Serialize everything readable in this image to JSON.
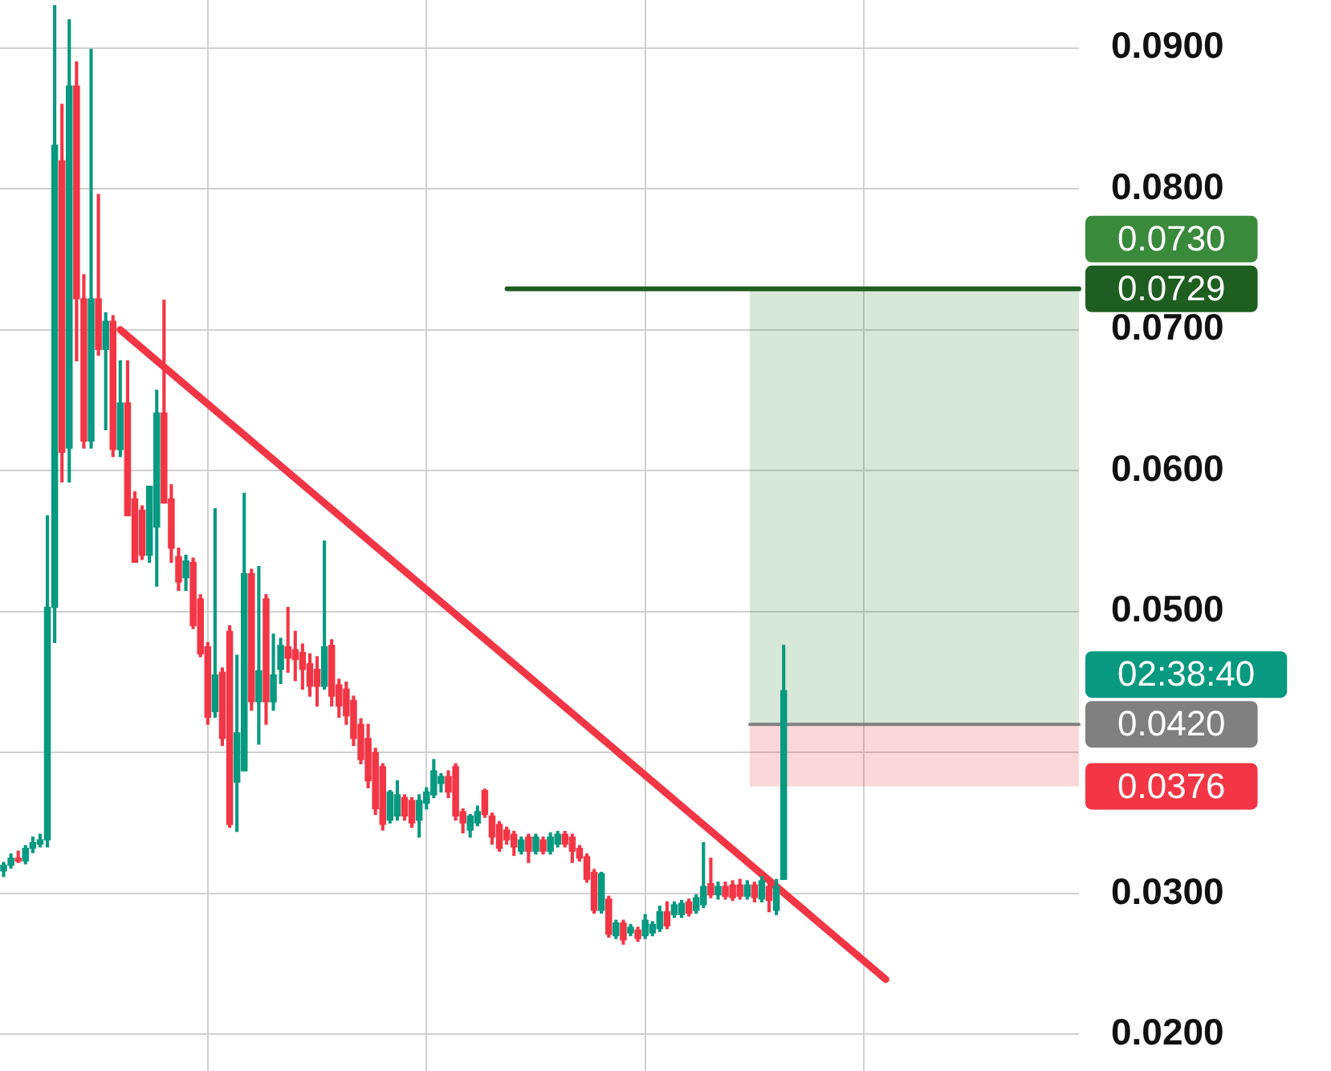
{
  "chart_data": {
    "type": "candlestick",
    "categories": [
      null,
      null,
      null,
      null,
      null,
      null,
      null,
      null,
      null,
      null,
      null,
      null,
      null,
      null,
      null,
      null,
      null,
      null,
      null,
      null,
      null,
      null,
      null,
      null,
      null,
      null,
      null,
      null,
      null,
      null,
      null,
      null,
      null,
      null,
      null,
      null,
      null,
      null,
      null,
      null,
      null,
      null,
      null,
      null,
      null,
      null,
      null,
      null,
      null,
      null,
      null,
      null,
      null,
      null,
      null,
      null,
      null,
      null,
      null,
      null,
      null,
      null,
      null,
      null,
      null,
      null,
      null,
      null,
      null,
      null,
      null,
      null,
      null,
      null,
      null,
      null,
      null,
      null,
      null,
      null,
      null,
      null,
      null,
      null,
      null,
      null,
      null,
      null,
      null,
      null,
      null,
      null,
      null,
      null,
      null,
      null,
      null,
      null,
      null,
      null,
      null,
      null,
      null,
      null,
      null,
      null,
      null,
      null,
      null,
      null,
      null,
      null,
      null,
      null,
      null,
      null,
      null,
      null,
      null,
      null,
      null,
      null,
      null,
      null,
      null,
      null,
      null,
      null,
      null,
      null,
      null,
      null,
      null,
      null,
      null,
      null,
      null,
      null,
      null,
      null,
      null,
      null,
      null,
      null,
      null,
      null,
      null,
      null
    ],
    "colors": [
      "#089981",
      "#089981",
      "#f23645",
      "#089981",
      "#089981",
      "#089981",
      "#089981",
      "#089981",
      "#f23645",
      "#089981",
      "#f23645",
      "#f23645",
      "#089981",
      "#f23645",
      "#089981",
      "#f23645",
      "#089981",
      "#f23645",
      "#f23645",
      "#f23645",
      "#089981",
      "#089981",
      "#f23645",
      "#f23645",
      "#f23645",
      "#089981",
      "#f23645",
      "#f23645",
      "#f23645",
      "#089981",
      "#f23645",
      "#f23645",
      "#089981",
      "#089981",
      "#f23645",
      "#089981",
      "#f23645",
      "#089981",
      "#089981",
      "#f23645",
      "#f23645",
      "#f23645",
      "#f23645",
      "#f23645",
      "#089981",
      "#f23645",
      "#f23645",
      "#f23645",
      "#f23645",
      "#f23645",
      "#f23645",
      "#f23645",
      "#f23645",
      "#089981",
      "#089981",
      "#f23645",
      "#f23645",
      "#089981",
      "#089981",
      "#089981",
      "#089981",
      "#f23645",
      "#f23645",
      "#f23645",
      "#089981",
      "#089981",
      "#f23645",
      "#f23645",
      "#f23645",
      "#f23645",
      "#f23645",
      "#089981",
      "#f23645",
      "#089981",
      "#f23645",
      "#089981",
      "#089981",
      "#f23645",
      "#f23645",
      "#f23645",
      "#f23645",
      "#f23645",
      "#089981",
      "#f23645",
      "#089981",
      "#f23645",
      "#089981",
      "#f23645",
      "#089981",
      "#089981",
      "#089981",
      "#f23645",
      "#089981",
      "#089981",
      "#f23645",
      "#089981",
      "#089981",
      "#f23645",
      "#089981",
      "#f23645",
      "#f23645",
      "#f23645",
      "#089981",
      "#f23645",
      "#089981",
      "#f23645",
      "#089981",
      "#089981",
      null,
      null,
      null,
      null,
      null,
      null,
      null,
      null,
      null,
      null,
      null,
      null,
      null,
      null,
      null,
      null,
      null,
      null,
      null,
      null,
      null,
      null,
      null,
      null,
      null,
      null,
      null,
      null,
      null,
      null,
      null,
      null,
      null,
      null,
      null,
      null,
      null,
      null,
      null,
      null
    ],
    "ohlc": [
      [
        0.0316,
        0.0322,
        0.0312,
        0.032
      ],
      [
        0.032,
        0.0328,
        0.0318,
        0.0325
      ],
      [
        0.0325,
        0.033,
        0.0322,
        0.0323
      ],
      [
        0.0323,
        0.0334,
        0.0321,
        0.0332
      ],
      [
        0.0332,
        0.034,
        0.0329,
        0.0336
      ],
      [
        0.0335,
        0.0342,
        0.0333,
        0.0338
      ],
      [
        0.0338,
        0.0568,
        0.0333,
        0.0503
      ],
      [
        0.0503,
        0.093,
        0.0478,
        0.0831
      ],
      [
        0.082,
        0.086,
        0.0592,
        0.0613
      ],
      [
        0.0616,
        0.092,
        0.0592,
        0.0873
      ],
      [
        0.0873,
        0.089,
        0.0678,
        0.0722
      ],
      [
        0.0722,
        0.0739,
        0.0616,
        0.0621
      ],
      [
        0.0621,
        0.0899,
        0.0616,
        0.0722
      ],
      [
        0.0722,
        0.0796,
        0.0682,
        0.0686
      ],
      [
        0.0686,
        0.0712,
        0.0629,
        0.0706
      ],
      [
        0.0706,
        0.071,
        0.061,
        0.0615
      ],
      [
        0.0615,
        0.0678,
        0.061,
        0.0648
      ],
      [
        0.0648,
        0.0678,
        0.0568,
        0.0568
      ],
      [
        0.058,
        0.0585,
        0.0535,
        0.0535
      ],
      [
        0.0572,
        0.0575,
        0.0537,
        0.054
      ],
      [
        0.054,
        0.0589,
        0.0535,
        0.0589
      ],
      [
        0.056,
        0.0657,
        0.0518,
        0.0641
      ],
      [
        0.0641,
        0.0721,
        0.0577,
        0.0577
      ],
      [
        0.058,
        0.059,
        0.0535,
        0.0545
      ],
      [
        0.0539,
        0.0545,
        0.0515,
        0.0521
      ],
      [
        0.0524,
        0.054,
        0.0515,
        0.0536
      ],
      [
        0.0535,
        0.0538,
        0.0488,
        0.049
      ],
      [
        0.0509,
        0.0512,
        0.0468,
        0.047
      ],
      [
        0.0475,
        0.0478,
        0.042,
        0.0425
      ],
      [
        0.0429,
        0.0573,
        0.0425,
        0.0455
      ],
      [
        0.0457,
        0.046,
        0.0405,
        0.041
      ],
      [
        0.0486,
        0.049,
        0.0347,
        0.0349
      ],
      [
        0.0379,
        0.0469,
        0.0344,
        0.0414
      ],
      [
        0.0387,
        0.0584,
        0.0387,
        0.0527
      ],
      [
        0.0527,
        0.053,
        0.043,
        0.0436
      ],
      [
        0.0436,
        0.0532,
        0.0406,
        0.0458
      ],
      [
        0.0509,
        0.0512,
        0.042,
        0.0436
      ],
      [
        0.0436,
        0.0484,
        0.043,
        0.0455
      ],
      [
        0.0459,
        0.0481,
        0.0449,
        0.0476
      ],
      [
        0.0475,
        0.0503,
        0.0457,
        0.0467
      ],
      [
        0.0473,
        0.0486,
        0.0451,
        0.0466
      ],
      [
        0.0471,
        0.0477,
        0.0445,
        0.0459
      ],
      [
        0.0463,
        0.047,
        0.044,
        0.0447
      ],
      [
        0.0459,
        0.0468,
        0.0433,
        0.0447
      ],
      [
        0.0447,
        0.055,
        0.0445,
        0.0475
      ],
      [
        0.0476,
        0.048,
        0.0433,
        0.044
      ],
      [
        0.0448,
        0.0452,
        0.0425,
        0.0433
      ],
      [
        0.0445,
        0.045,
        0.042,
        0.0426
      ],
      [
        0.0437,
        0.044,
        0.0405,
        0.041
      ],
      [
        0.042,
        0.0424,
        0.0392,
        0.0395
      ],
      [
        0.041,
        0.042,
        0.0375,
        0.038
      ],
      [
        0.04,
        0.0403,
        0.0356,
        0.036
      ],
      [
        0.039,
        0.0392,
        0.0345,
        0.0349
      ],
      [
        0.0352,
        0.0373,
        0.035,
        0.0372
      ],
      [
        0.0355,
        0.038,
        0.0352,
        0.037
      ],
      [
        0.0368,
        0.037,
        0.0352,
        0.0355
      ],
      [
        0.0366,
        0.0368,
        0.0347,
        0.035
      ],
      [
        0.0352,
        0.037,
        0.034,
        0.0366
      ],
      [
        0.0364,
        0.0375,
        0.036,
        0.0372
      ],
      [
        0.037,
        0.0395,
        0.0368,
        0.0387
      ],
      [
        0.0378,
        0.0385,
        0.0372,
        0.0383
      ],
      [
        0.0383,
        0.0387,
        0.0368,
        0.0372
      ],
      [
        0.039,
        0.0392,
        0.0352,
        0.0355
      ],
      [
        0.0358,
        0.036,
        0.0343,
        0.035
      ],
      [
        0.0345,
        0.0356,
        0.034,
        0.0355
      ],
      [
        0.035,
        0.0362,
        0.0348,
        0.0358
      ],
      [
        0.0373,
        0.0374,
        0.0354,
        0.0356
      ],
      [
        0.0355,
        0.0357,
        0.0335,
        0.034
      ],
      [
        0.0349,
        0.0351,
        0.033,
        0.0332
      ],
      [
        0.0345,
        0.0347,
        0.0335,
        0.0338
      ],
      [
        0.0342,
        0.0344,
        0.0327,
        0.0333
      ],
      [
        0.033,
        0.034,
        0.0328,
        0.0338
      ],
      [
        0.034,
        0.0342,
        0.0322,
        0.033
      ],
      [
        0.033,
        0.0342,
        0.0328,
        0.034
      ],
      [
        0.0338,
        0.034,
        0.0328,
        0.033
      ],
      [
        0.033,
        0.0343,
        0.0328,
        0.034
      ],
      [
        0.0335,
        0.0344,
        0.0333,
        0.0342
      ],
      [
        0.0342,
        0.0344,
        0.0333,
        0.0335
      ],
      [
        0.034,
        0.0342,
        0.0322,
        0.033
      ],
      [
        0.0332,
        0.0334,
        0.0323,
        0.0325
      ],
      [
        0.0326,
        0.0328,
        0.0308,
        0.031
      ],
      [
        0.0315,
        0.0317,
        0.0286,
        0.0288
      ],
      [
        0.0288,
        0.0315,
        0.0286,
        0.0314
      ],
      [
        0.0296,
        0.0298,
        0.0269,
        0.0271
      ],
      [
        0.027,
        0.0281,
        0.0268,
        0.0279
      ],
      [
        0.0279,
        0.0281,
        0.0264,
        0.0267
      ],
      [
        0.0272,
        0.0278,
        0.027,
        0.0276
      ],
      [
        0.0274,
        0.0276,
        0.0266,
        0.0268
      ],
      [
        0.027,
        0.0285,
        0.0268,
        0.0281
      ],
      [
        0.0272,
        0.028,
        0.027,
        0.0278
      ],
      [
        0.0275,
        0.0291,
        0.0273,
        0.0287
      ],
      [
        0.0287,
        0.0294,
        0.0275,
        0.0277
      ],
      [
        0.0285,
        0.0294,
        0.0283,
        0.0292
      ],
      [
        0.0285,
        0.0295,
        0.0283,
        0.0293
      ],
      [
        0.0294,
        0.0296,
        0.0284,
        0.0286
      ],
      [
        0.0288,
        0.0299,
        0.0286,
        0.0297
      ],
      [
        0.0292,
        0.0336,
        0.029,
        0.0305
      ],
      [
        0.0307,
        0.0325,
        0.0297,
        0.0299
      ],
      [
        0.0299,
        0.0308,
        0.0296,
        0.0305
      ],
      [
        0.0305,
        0.0308,
        0.0296,
        0.0298
      ],
      [
        0.0306,
        0.0309,
        0.0295,
        0.0297
      ],
      [
        0.0306,
        0.031,
        0.0296,
        0.0298
      ],
      [
        0.0298,
        0.0309,
        0.0296,
        0.0306
      ],
      [
        0.0306,
        0.0308,
        0.0294,
        0.0297
      ],
      [
        0.0296,
        0.0312,
        0.0294,
        0.0309
      ],
      [
        0.0305,
        0.0307,
        0.0287,
        0.0295
      ],
      [
        0.0288,
        0.031,
        0.0285,
        0.0305
      ],
      [
        0.031,
        0.0476,
        0.031,
        0.0444
      ],
      null,
      null,
      null,
      null,
      null,
      null,
      null,
      null,
      null,
      null,
      null,
      null,
      null,
      null,
      null,
      null,
      null,
      null,
      null,
      null,
      null,
      null,
      null,
      null,
      null,
      null,
      null,
      null,
      null,
      null,
      null,
      null,
      null,
      null,
      null,
      null,
      null,
      null,
      null,
      null
    ],
    "series": [
      {
        "type": "line",
        "color": "#f23645",
        "values": [
          null,
          null,
          null,
          null,
          null,
          null,
          null,
          null,
          null,
          null,
          null,
          null,
          null,
          null,
          null,
          null,
          0.07,
          null,
          null,
          null,
          null,
          null,
          null,
          null,
          null,
          null,
          null,
          null,
          null,
          null,
          null,
          null,
          null,
          null,
          null,
          null,
          null,
          null,
          null,
          null,
          null,
          null,
          null,
          null,
          null,
          null,
          null,
          null,
          null,
          null,
          null,
          null,
          null,
          null,
          null,
          null,
          null,
          null,
          null,
          null,
          null,
          null,
          null,
          null,
          null,
          null,
          null,
          null,
          null,
          null,
          null,
          null,
          null,
          null,
          null,
          null,
          null,
          null,
          null,
          null,
          null,
          null,
          null,
          null,
          null,
          null,
          null,
          null,
          null,
          null,
          null,
          null,
          null,
          null,
          null,
          null,
          null,
          null,
          null,
          null,
          null,
          null,
          null,
          null,
          null,
          null,
          null,
          null,
          null,
          null,
          null,
          null,
          null,
          null,
          null,
          null,
          null,
          null,
          null,
          null,
          null,
          0.0239,
          null,
          null,
          null,
          null,
          null,
          null,
          null,
          null,
          null,
          null,
          null,
          null,
          null,
          null,
          null,
          null,
          null,
          null,
          null,
          null,
          null,
          null,
          null,
          null,
          null,
          null
        ]
      }
    ],
    "ylim": [
      0.0174,
      0.0934
    ],
    "yticks": [
      {
        "value": 0.02,
        "label": "0.0200"
      },
      {
        "value": 0.03,
        "label": "0.0300"
      },
      {
        "value": 0.04,
        "label": null
      },
      {
        "value": 0.05,
        "label": "0.0500"
      },
      {
        "value": 0.06,
        "label": "0.0600"
      },
      {
        "value": 0.07,
        "label": "0.0700"
      },
      {
        "value": 0.08,
        "label": "0.0800"
      },
      {
        "value": 0.09,
        "label": "0.0900"
      }
    ],
    "bands": [
      {
        "axis": "y",
        "from": 0.042,
        "to": 0.073,
        "label": "0.0730",
        "color": "#3a8a3c"
      },
      {
        "axis": "y",
        "from": 0.0376,
        "to": 0.042,
        "label": "0.0376",
        "color": "#f23645"
      }
    ],
    "ref_lines": [
      {
        "axis": "y",
        "value": 0.0729,
        "label": "0.0729",
        "color": "#1e5e20"
      },
      {
        "axis": "y",
        "value": 0.042,
        "label": "0.0420",
        "color": "#808080"
      }
    ],
    "annotations": [
      "02:38:40"
    ],
    "grid": true,
    "tick_labels": "y",
    "legend": false
  }
}
